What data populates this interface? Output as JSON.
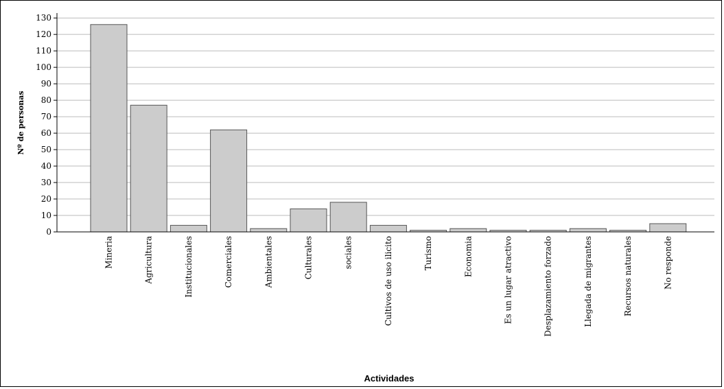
{
  "chart_data": {
    "type": "bar",
    "categories": [
      "Mineria",
      "Agricultura",
      "Institucionales",
      "Comerciales",
      "Ambientales",
      "Culturales",
      "sociales",
      "Cultivos de uso ilicito",
      "Turismo",
      "Economia",
      "Es un lugar atractivo",
      "Desplazamiento forzado",
      "Llegada de migrantes",
      "Recursos naturales",
      "No responde"
    ],
    "values": [
      126,
      77,
      4,
      62,
      2,
      14,
      18,
      4,
      1,
      2,
      1,
      1,
      2,
      1,
      5
    ],
    "title": "",
    "xlabel": "Actividades",
    "ylabel": "Nº de personas",
    "ylim": [
      0,
      130
    ],
    "yticks": [
      0,
      10,
      20,
      30,
      40,
      50,
      60,
      70,
      80,
      90,
      100,
      110,
      120,
      130
    ],
    "grid": true,
    "colors": {
      "bar_fill": "#cccccc",
      "bar_stroke": "#555555",
      "grid": "#bbbbbb"
    }
  }
}
